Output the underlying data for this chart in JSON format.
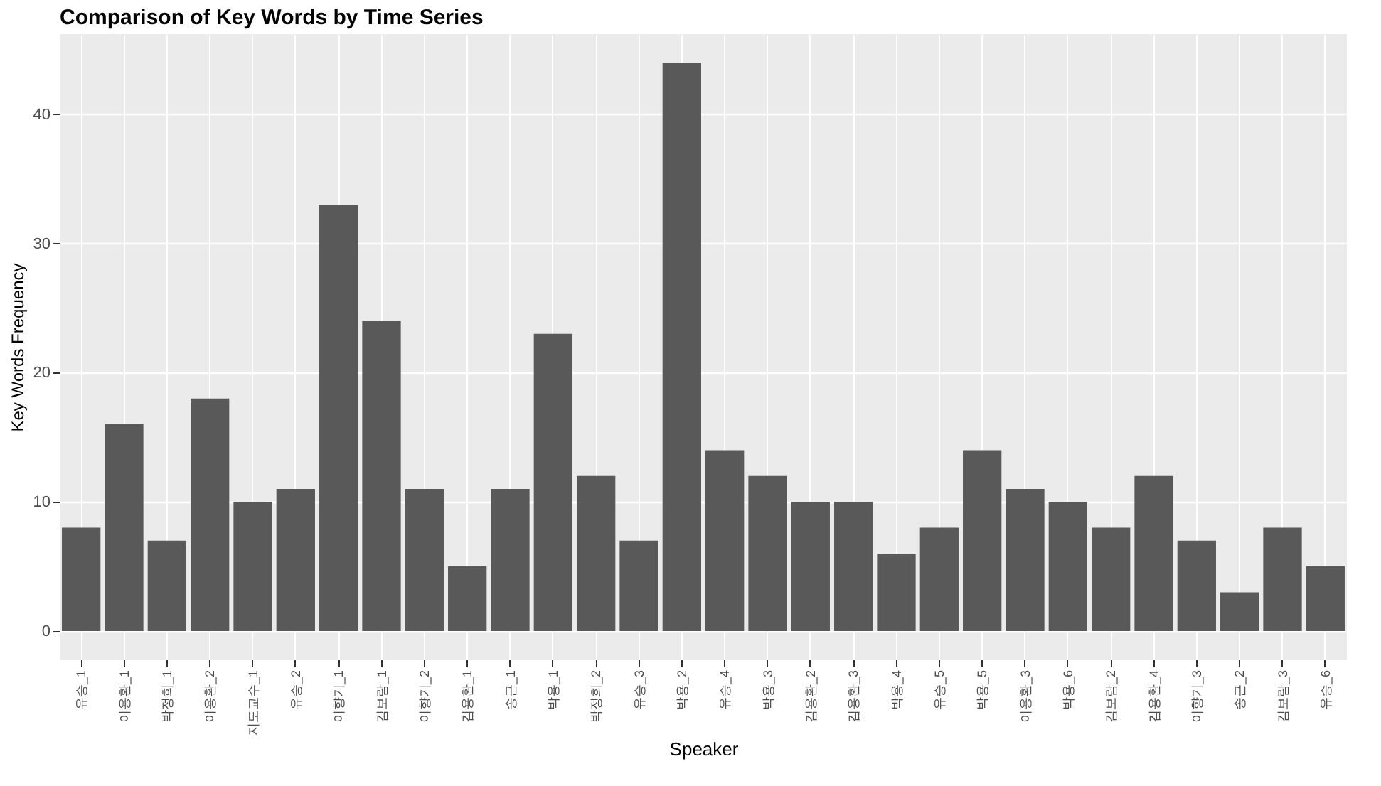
{
  "chart_data": {
    "type": "bar",
    "title": "Comparison of Key Words by Time Series",
    "xlabel": "Speaker",
    "ylabel": "Key Words Frequency",
    "categories": [
      "유승_1",
      "이용환_1",
      "박정희_1",
      "이용환_2",
      "지도교수_1",
      "유승_2",
      "이향기_1",
      "김보람_1",
      "이향기_2",
      "김용환_1",
      "송근_1",
      "박용_1",
      "박정희_2",
      "유승_3",
      "박용_2",
      "유승_4",
      "박용_3",
      "김용환_2",
      "김용환_3",
      "박용_4",
      "유승_5",
      "박용_5",
      "이용환_3",
      "박용_6",
      "김보람_2",
      "김용환_4",
      "이향기_3",
      "송근_2",
      "김보람_3",
      "유승_6"
    ],
    "values": [
      8,
      16,
      7,
      18,
      10,
      11,
      33,
      24,
      11,
      5,
      11,
      23,
      12,
      7,
      44,
      14,
      12,
      10,
      10,
      6,
      8,
      14,
      11,
      10,
      8,
      12,
      7,
      3,
      8,
      5
    ],
    "color": "#595959",
    "ylim": [
      -2.2,
      46.2
    ],
    "yticks": [
      0,
      10,
      20,
      30,
      40
    ],
    "grid": true
  }
}
